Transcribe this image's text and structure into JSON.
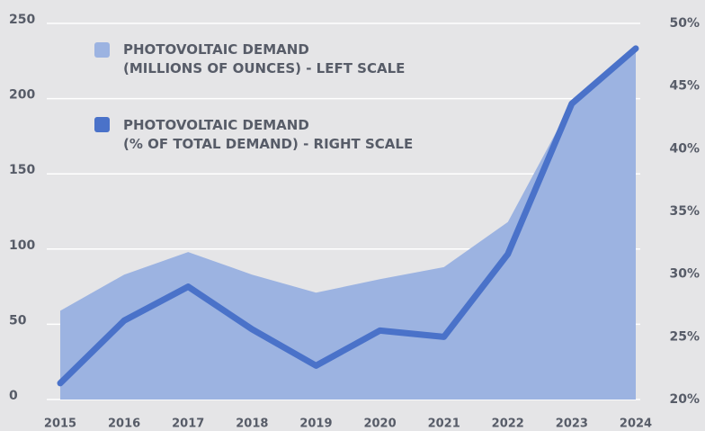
{
  "chart_data": {
    "type": "area-line",
    "categories": [
      "2015",
      "2016",
      "2017",
      "2018",
      "2019",
      "2020",
      "2021",
      "2022",
      "2023",
      "2024"
    ],
    "series": [
      {
        "name": "PHOTOVOLTAIC DEMAND\n(MILLIONS OF OUNCES) - LEFT SCALE",
        "color": "#9cb3e1",
        "type": "area",
        "axis": "y",
        "values": [
          59,
          83,
          98,
          83,
          71,
          80,
          88,
          118,
          197,
          233
        ]
      },
      {
        "name": "PHOTOVOLTAIC DEMAND\n(% OF TOTAL DEMAND) - RIGHT SCALE",
        "color": "#4a72c9",
        "type": "line",
        "axis": "y2",
        "values": [
          21.3,
          26.3,
          29.0,
          25.6,
          22.7,
          25.5,
          25.0,
          31.6,
          43.6,
          48.0
        ]
      }
    ],
    "ylim": [
      0,
      250
    ],
    "yticks": [
      0,
      50,
      100,
      150,
      200,
      250
    ],
    "y2lim": [
      20,
      50
    ],
    "y2ticks": [
      {
        "value": 20,
        "label": "20%"
      },
      {
        "value": 25,
        "label": "25%"
      },
      {
        "value": 30,
        "label": "30%"
      },
      {
        "value": 35,
        "label": "35%"
      },
      {
        "value": 40,
        "label": "40%"
      },
      {
        "value": 45,
        "label": "45%"
      },
      {
        "value": 50,
        "label": "50%"
      }
    ],
    "grid": true
  }
}
